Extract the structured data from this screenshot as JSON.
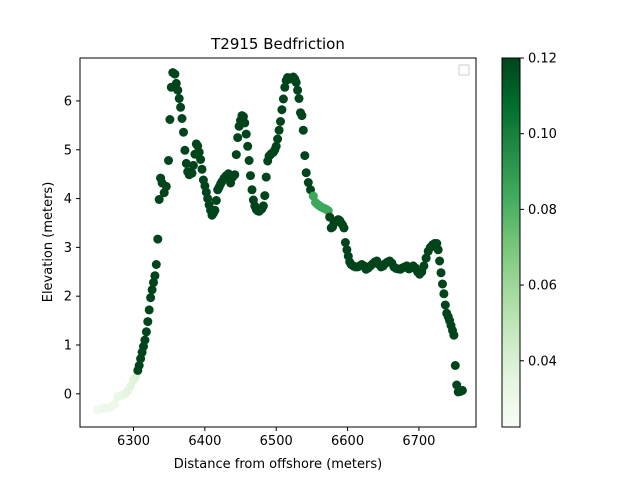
{
  "chart_data": {
    "type": "scatter",
    "title": "T2915 Bedfriction",
    "xlabel": "Distance from offshore (meters)",
    "ylabel": "Elevation (meters)",
    "xlim": [
      6225,
      6780
    ],
    "ylim": [
      -0.68,
      6.88
    ],
    "xticks": [
      6300,
      6400,
      6500,
      6600,
      6700
    ],
    "yticks": [
      0,
      1,
      2,
      3,
      4,
      5,
      6
    ],
    "grid": false,
    "legend": "top-right",
    "colorbar": {
      "colormap": "Greens",
      "range": [
        0.0225,
        0.12
      ],
      "ticks": [
        0.04,
        0.06,
        0.08,
        0.1,
        0.12
      ],
      "tick_labels": [
        "0.04",
        "0.06",
        "0.08",
        "0.10",
        "0.12"
      ]
    },
    "points": [
      [
        6249,
        -0.33,
        0.028
      ],
      [
        6255,
        -0.31,
        0.028
      ],
      [
        6261,
        -0.29,
        0.029
      ],
      [
        6267,
        -0.28,
        0.029
      ],
      [
        6273,
        -0.22,
        0.03
      ],
      [
        6278,
        -0.06,
        0.032
      ],
      [
        6283,
        -0.04,
        0.032
      ],
      [
        6288,
        0.0,
        0.033
      ],
      [
        6292,
        0.06,
        0.034
      ],
      [
        6296,
        0.16,
        0.035
      ],
      [
        6300,
        0.28,
        0.036
      ],
      [
        6303,
        0.35,
        0.037
      ],
      [
        6306,
        0.48,
        0.12
      ],
      [
        6308,
        0.58,
        0.12
      ],
      [
        6310,
        0.72,
        0.12
      ],
      [
        6312,
        0.85,
        0.12
      ],
      [
        6314,
        0.97,
        0.12
      ],
      [
        6316,
        1.1,
        0.12
      ],
      [
        6318,
        1.27,
        0.12
      ],
      [
        6320,
        1.48,
        0.12
      ],
      [
        6322,
        1.72,
        0.12
      ],
      [
        6324,
        1.97,
        0.12
      ],
      [
        6326,
        2.13,
        0.12
      ],
      [
        6328,
        2.28,
        0.12
      ],
      [
        6330,
        2.42,
        0.12
      ],
      [
        6332,
        2.65,
        0.12
      ],
      [
        6334,
        3.17,
        0.12
      ],
      [
        6336,
        3.98,
        0.12
      ],
      [
        6338,
        4.42,
        0.12
      ],
      [
        6340,
        4.32,
        0.12
      ],
      [
        6343,
        4.12,
        0.12
      ],
      [
        6346,
        4.25,
        0.12
      ],
      [
        6349,
        4.78,
        0.12
      ],
      [
        6351,
        5.62,
        0.12
      ],
      [
        6353,
        6.28,
        0.12
      ],
      [
        6355,
        6.58,
        0.12
      ],
      [
        6358,
        6.55,
        0.12
      ],
      [
        6360,
        6.36,
        0.12
      ],
      [
        6362,
        6.22,
        0.12
      ],
      [
        6364,
        6.05,
        0.12
      ],
      [
        6366,
        5.87,
        0.12
      ],
      [
        6368,
        5.64,
        0.12
      ],
      [
        6370,
        5.36,
        0.12
      ],
      [
        6372,
        4.99,
        0.12
      ],
      [
        6374,
        4.72,
        0.12
      ],
      [
        6376,
        4.55,
        0.12
      ],
      [
        6378,
        4.49,
        0.12
      ],
      [
        6380,
        4.52,
        0.12
      ],
      [
        6382,
        4.52,
        0.12
      ],
      [
        6384,
        4.68,
        0.12
      ],
      [
        6386,
        4.91,
        0.12
      ],
      [
        6388,
        5.12,
        0.12
      ],
      [
        6390,
        5.08,
        0.12
      ],
      [
        6392,
        4.95,
        0.12
      ],
      [
        6394,
        4.8,
        0.12
      ],
      [
        6396,
        4.6,
        0.12
      ],
      [
        6398,
        4.38,
        0.12
      ],
      [
        6400,
        4.26,
        0.12
      ],
      [
        6402,
        4.13,
        0.12
      ],
      [
        6404,
        4.0,
        0.12
      ],
      [
        6406,
        3.87,
        0.12
      ],
      [
        6408,
        3.76,
        0.12
      ],
      [
        6410,
        3.66,
        0.12
      ],
      [
        6412,
        3.7,
        0.12
      ],
      [
        6414,
        3.76,
        0.12
      ],
      [
        6416,
        3.96,
        0.12
      ],
      [
        6418,
        4.18,
        0.12
      ],
      [
        6420,
        4.23,
        0.12
      ],
      [
        6422,
        4.3,
        0.12
      ],
      [
        6424,
        4.35,
        0.12
      ],
      [
        6427,
        4.42,
        0.12
      ],
      [
        6430,
        4.47,
        0.12
      ],
      [
        6433,
        4.51,
        0.12
      ],
      [
        6436,
        4.32,
        0.12
      ],
      [
        6439,
        4.44,
        0.12
      ],
      [
        6442,
        4.49,
        0.12
      ],
      [
        6444,
        4.9,
        0.12
      ],
      [
        6446,
        5.25,
        0.12
      ],
      [
        6448,
        5.48,
        0.12
      ],
      [
        6450,
        5.6,
        0.12
      ],
      [
        6452,
        5.7,
        0.12
      ],
      [
        6454,
        5.68,
        0.12
      ],
      [
        6456,
        5.55,
        0.12
      ],
      [
        6458,
        5.32,
        0.12
      ],
      [
        6460,
        5.07,
        0.12
      ],
      [
        6462,
        4.78,
        0.12
      ],
      [
        6464,
        4.47,
        0.12
      ],
      [
        6466,
        4.18,
        0.12
      ],
      [
        6468,
        3.97,
        0.12
      ],
      [
        6470,
        3.85,
        0.12
      ],
      [
        6472,
        3.78,
        0.12
      ],
      [
        6474,
        3.75,
        0.12
      ],
      [
        6476,
        3.74,
        0.12
      ],
      [
        6478,
        3.77,
        0.12
      ],
      [
        6480,
        3.79,
        0.12
      ],
      [
        6482,
        3.85,
        0.12
      ],
      [
        6484,
        4.06,
        0.12
      ],
      [
        6486,
        4.44,
        0.12
      ],
      [
        6488,
        4.77,
        0.12
      ],
      [
        6490,
        4.87,
        0.12
      ],
      [
        6492,
        4.9,
        0.12
      ],
      [
        6494,
        4.93,
        0.12
      ],
      [
        6496,
        4.95,
        0.12
      ],
      [
        6498,
        5.0,
        0.12
      ],
      [
        6500,
        5.07,
        0.12
      ],
      [
        6502,
        5.22,
        0.12
      ],
      [
        6504,
        5.4,
        0.12
      ],
      [
        6506,
        5.58,
        0.12
      ],
      [
        6508,
        5.82,
        0.12
      ],
      [
        6510,
        6.04,
        0.12
      ],
      [
        6512,
        6.28,
        0.12
      ],
      [
        6514,
        6.42,
        0.12
      ],
      [
        6516,
        6.48,
        0.12
      ],
      [
        6518,
        6.47,
        0.12
      ],
      [
        6520,
        6.45,
        0.12
      ],
      [
        6522,
        6.47,
        0.12
      ],
      [
        6524,
        6.49,
        0.12
      ],
      [
        6526,
        6.45,
        0.12
      ],
      [
        6528,
        6.38,
        0.12
      ],
      [
        6530,
        6.22,
        0.12
      ],
      [
        6532,
        6.05,
        0.12
      ],
      [
        6534,
        5.76,
        0.12
      ],
      [
        6536,
        5.7,
        0.12
      ],
      [
        6538,
        5.4,
        0.12
      ],
      [
        6540,
        4.88,
        0.12
      ],
      [
        6542,
        4.53,
        0.12
      ],
      [
        6545,
        4.33,
        0.12
      ],
      [
        6548,
        4.18,
        0.12
      ],
      [
        6552,
        4.05,
        0.085
      ],
      [
        6555,
        3.92,
        0.085
      ],
      [
        6558,
        3.88,
        0.085
      ],
      [
        6561,
        3.85,
        0.085
      ],
      [
        6564,
        3.82,
        0.085
      ],
      [
        6567,
        3.8,
        0.085
      ],
      [
        6570,
        3.78,
        0.085
      ],
      [
        6573,
        3.75,
        0.085
      ],
      [
        6575,
        3.62,
        0.12
      ],
      [
        6577,
        3.4,
        0.12
      ],
      [
        6579,
        3.42,
        0.12
      ],
      [
        6581,
        3.5,
        0.12
      ],
      [
        6583,
        3.52,
        0.12
      ],
      [
        6585,
        3.55,
        0.12
      ],
      [
        6587,
        3.57,
        0.12
      ],
      [
        6589,
        3.55,
        0.12
      ],
      [
        6591,
        3.5,
        0.12
      ],
      [
        6593,
        3.46,
        0.12
      ],
      [
        6595,
        3.4,
        0.12
      ],
      [
        6597,
        3.1,
        0.12
      ],
      [
        6599,
        2.95,
        0.12
      ],
      [
        6601,
        2.82,
        0.12
      ],
      [
        6603,
        2.7,
        0.12
      ],
      [
        6605,
        2.65,
        0.12
      ],
      [
        6608,
        2.62,
        0.12
      ],
      [
        6611,
        2.6,
        0.12
      ],
      [
        6614,
        2.6,
        0.12
      ],
      [
        6617,
        2.62,
        0.12
      ],
      [
        6620,
        2.65,
        0.12
      ],
      [
        6623,
        2.62,
        0.12
      ],
      [
        6626,
        2.55,
        0.12
      ],
      [
        6629,
        2.58,
        0.12
      ],
      [
        6632,
        2.62,
        0.12
      ],
      [
        6635,
        2.66,
        0.12
      ],
      [
        6638,
        2.7,
        0.12
      ],
      [
        6641,
        2.72,
        0.12
      ],
      [
        6644,
        2.65,
        0.12
      ],
      [
        6647,
        2.6,
        0.12
      ],
      [
        6650,
        2.62,
        0.12
      ],
      [
        6653,
        2.67,
        0.12
      ],
      [
        6656,
        2.7,
        0.12
      ],
      [
        6659,
        2.72,
        0.12
      ],
      [
        6662,
        2.68,
        0.12
      ],
      [
        6665,
        2.6,
        0.12
      ],
      [
        6668,
        2.57,
        0.12
      ],
      [
        6671,
        2.56,
        0.12
      ],
      [
        6674,
        2.55,
        0.12
      ],
      [
        6677,
        2.58,
        0.12
      ],
      [
        6680,
        2.6,
        0.12
      ],
      [
        6683,
        2.62,
        0.12
      ],
      [
        6686,
        2.56,
        0.12
      ],
      [
        6689,
        2.58,
        0.12
      ],
      [
        6692,
        2.62,
        0.12
      ],
      [
        6695,
        2.58,
        0.12
      ],
      [
        6698,
        2.5,
        0.12
      ],
      [
        6701,
        2.45,
        0.12
      ],
      [
        6704,
        2.5,
        0.12
      ],
      [
        6707,
        2.62,
        0.12
      ],
      [
        6710,
        2.78,
        0.12
      ],
      [
        6713,
        2.92,
        0.12
      ],
      [
        6716,
        3.0,
        0.12
      ],
      [
        6719,
        3.05,
        0.12
      ],
      [
        6722,
        3.08,
        0.12
      ],
      [
        6725,
        3.08,
        0.12
      ],
      [
        6727,
        2.95,
        0.12
      ],
      [
        6729,
        2.72,
        0.12
      ],
      [
        6731,
        2.48,
        0.12
      ],
      [
        6733,
        2.25,
        0.12
      ],
      [
        6735,
        2.05,
        0.12
      ],
      [
        6737,
        1.82,
        0.12
      ],
      [
        6739,
        1.65,
        0.12
      ],
      [
        6741,
        1.58,
        0.12
      ],
      [
        6743,
        1.5,
        0.12
      ],
      [
        6745,
        1.4,
        0.12
      ],
      [
        6747,
        1.3,
        0.12
      ],
      [
        6749,
        1.2,
        0.12
      ],
      [
        6751,
        0.58,
        0.12
      ],
      [
        6753,
        0.18,
        0.12
      ],
      [
        6755,
        0.04,
        0.12
      ],
      [
        6758,
        0.05,
        0.12
      ],
      [
        6761,
        0.07,
        0.12
      ]
    ]
  }
}
